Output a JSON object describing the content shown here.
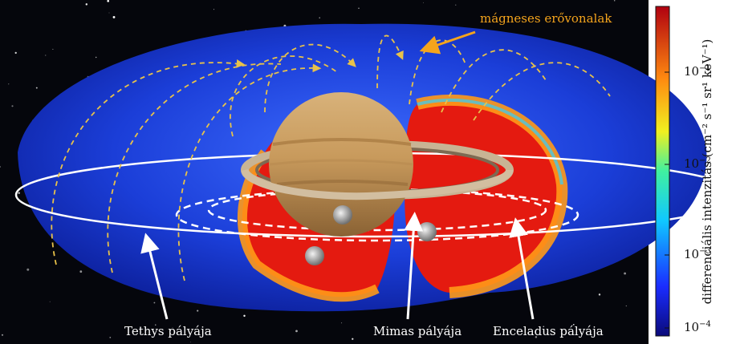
{
  "labels": {
    "field_lines": "mágneses erővonalak",
    "tethys": "Tethys pályája",
    "mimas": "Mimas pályája",
    "enceladus": "Enceladus pályája"
  },
  "colorbar": {
    "title": "differenciális intenzitás (cm⁻² s⁻¹ sr¹ keV⁻¹)",
    "ticks": [
      {
        "base": "10",
        "exp": "−1"
      },
      {
        "base": "10",
        "exp": "−2"
      },
      {
        "base": "10",
        "exp": "−3"
      },
      {
        "base": "10",
        "exp": "−4"
      }
    ],
    "scale": "log"
  },
  "colors": {
    "belt_outer": "#1a3ce0",
    "belt_inner": "#e41a10",
    "arrow_field": "#f4a41c",
    "orbit": "#ffffff",
    "space": "#05060c"
  }
}
